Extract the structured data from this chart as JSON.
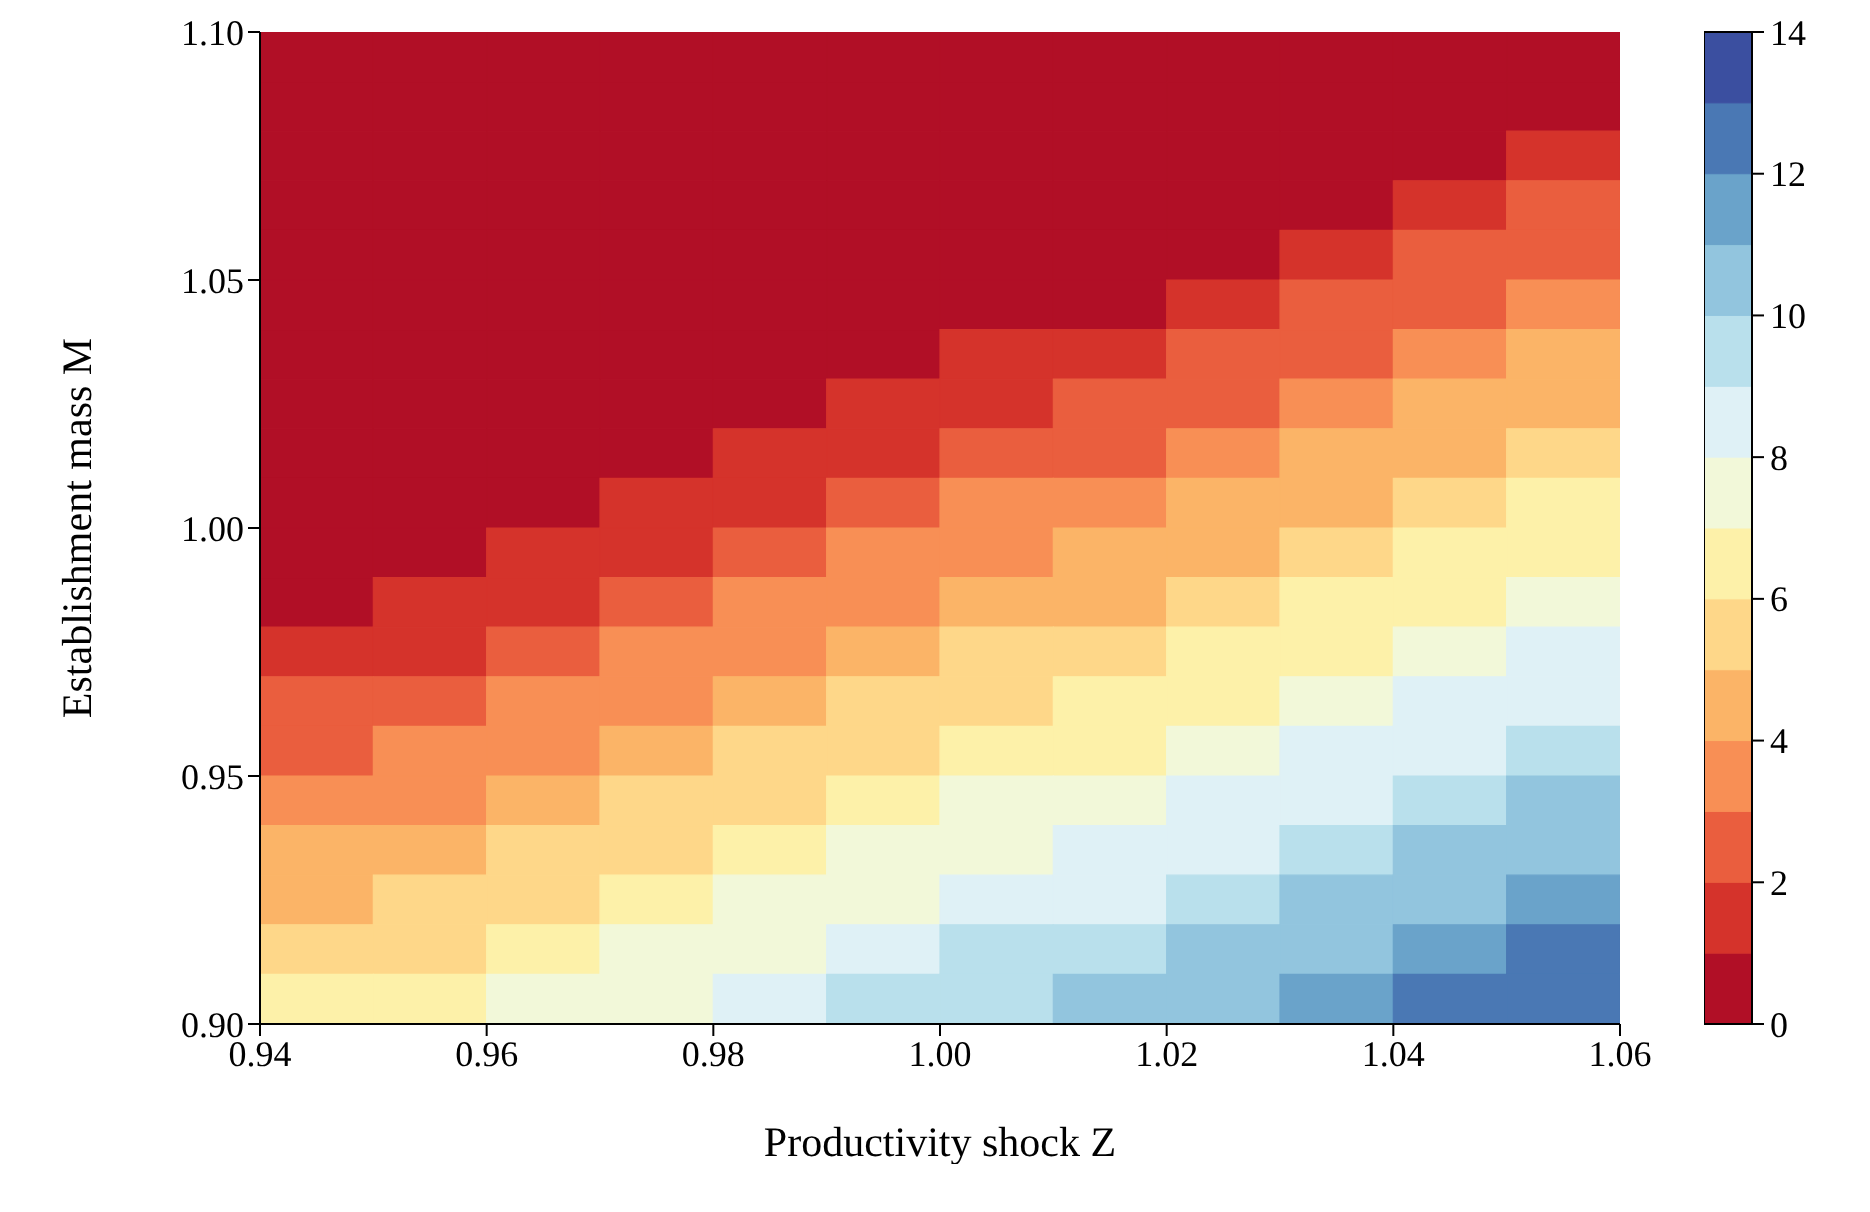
{
  "chart_data": {
    "type": "heatmap",
    "xlabel": "Productivity shock Z",
    "ylabel": "Establishment mass M",
    "xlim": [
      0.94,
      1.06
    ],
    "xticks": [
      0.94,
      0.96,
      0.98,
      {
        "value": 1.0,
        "label": "1.00"
      },
      1.02,
      1.04,
      1.06
    ],
    "ylim": [
      0.9,
      1.1
    ],
    "yticks": [
      {
        "value": 0.9,
        "label": "0.90"
      },
      0.95,
      {
        "value": 1.0,
        "label": "1.00"
      },
      1.05,
      {
        "value": 1.1,
        "label": "1.10"
      }
    ],
    "clim": [
      0,
      14
    ],
    "cticks": [
      0,
      2,
      4,
      6,
      8,
      10,
      12,
      14
    ],
    "colors": [
      "#b10f26",
      "#d5332b",
      "#ea5e3e",
      "#f88f55",
      "#fbb467",
      "#fed789",
      "#fdf1a9",
      "#f2f8d9",
      "#dff1f6",
      "#b9e0ec",
      "#92c5de",
      "#6aa3ca",
      "#4a78b4",
      "#3b4fa0"
    ],
    "cells": [
      [
        0,
        0,
        0,
        0,
        0,
        0,
        0,
        0,
        0,
        0,
        0,
        0
      ],
      [
        0,
        0,
        0,
        0,
        0,
        0,
        0,
        0,
        0,
        0,
        0.1,
        0.7
      ],
      [
        0,
        0,
        0,
        0,
        0,
        0,
        0,
        0,
        0,
        0.1,
        0.7,
        1.3
      ],
      [
        0,
        0,
        0,
        0,
        0,
        0,
        0,
        0,
        0.2,
        0.8,
        1.4,
        2.0
      ],
      [
        0,
        0,
        0,
        0,
        0,
        0,
        0,
        0.2,
        0.8,
        1.5,
        2.1,
        2.7
      ],
      [
        0,
        0,
        0,
        0,
        0,
        0,
        0.3,
        0.9,
        1.5,
        2.1,
        2.7,
        3.3
      ],
      [
        0,
        0,
        0,
        0,
        0,
        0.3,
        1.0,
        1.6,
        2.2,
        2.8,
        3.4,
        4.0
      ],
      [
        0,
        0,
        0,
        0,
        0.4,
        1.0,
        1.6,
        2.2,
        2.9,
        3.5,
        4.1,
        4.7
      ],
      [
        0,
        0,
        0,
        0.5,
        1.1,
        1.7,
        2.3,
        2.9,
        3.5,
        4.1,
        4.7,
        5.4
      ],
      [
        0,
        0,
        0.5,
        1.1,
        1.7,
        2.3,
        3.0,
        3.6,
        4.2,
        4.8,
        5.4,
        6.0
      ],
      [
        0,
        0.6,
        1.2,
        1.8,
        2.4,
        3.0,
        3.6,
        4.2,
        4.9,
        5.5,
        6.1,
        6.7
      ],
      [
        0.6,
        1.2,
        1.8,
        2.5,
        3.1,
        3.7,
        4.3,
        4.9,
        5.5,
        6.1,
        6.7,
        7.3
      ],
      [
        1.3,
        1.9,
        2.5,
        3.1,
        3.7,
        4.3,
        5.0,
        5.6,
        6.2,
        6.8,
        7.4,
        8.0
      ],
      [
        2.0,
        2.6,
        3.2,
        3.8,
        4.4,
        5.0,
        5.6,
        6.2,
        6.9,
        7.5,
        8.1,
        8.7
      ],
      [
        2.6,
        3.2,
        3.8,
        4.5,
        5.1,
        5.7,
        6.3,
        6.9,
        7.5,
        8.1,
        8.7,
        9.3
      ],
      [
        3.3,
        3.9,
        4.5,
        5.1,
        5.7,
        6.3,
        7.0,
        7.6,
        8.2,
        8.8,
        9.4,
        10.0
      ],
      [
        4.0,
        4.6,
        5.2,
        5.8,
        6.4,
        7.0,
        7.6,
        8.2,
        8.9,
        9.5,
        10.1,
        10.7
      ],
      [
        4.6,
        5.2,
        5.8,
        6.5,
        7.1,
        7.7,
        8.3,
        8.9,
        9.5,
        10.1,
        10.7,
        11.3
      ],
      [
        5.3,
        5.9,
        6.5,
        7.1,
        7.7,
        8.4,
        9.0,
        9.6,
        10.2,
        10.8,
        11.4,
        12.0
      ],
      [
        6.0,
        6.6,
        7.2,
        7.8,
        8.4,
        9.0,
        9.6,
        10.2,
        10.9,
        11.5,
        12.1,
        12.7
      ]
    ]
  }
}
